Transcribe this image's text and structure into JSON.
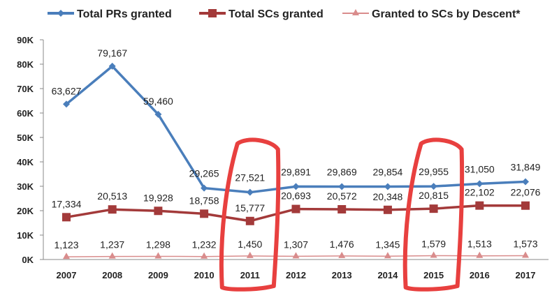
{
  "chart_data": {
    "type": "line",
    "title": "",
    "xlabel": "",
    "ylabel": "",
    "categories": [
      "2007",
      "2008",
      "2009",
      "2010",
      "2011",
      "2012",
      "2013",
      "2014",
      "2015",
      "2016",
      "2017"
    ],
    "ylim": [
      0,
      90000
    ],
    "yticks": [
      "0K",
      "10K",
      "20K",
      "30K",
      "40K",
      "50K",
      "60K",
      "70K",
      "80K",
      "90K"
    ],
    "legend_position": "top",
    "grid": false,
    "series": [
      {
        "name": "Total PRs granted",
        "color": "#4a7ebb",
        "marker": "diamond",
        "values": [
          63627,
          79167,
          59460,
          29265,
          27521,
          29891,
          29869,
          29854,
          29955,
          31050,
          31849
        ]
      },
      {
        "name": "Total SCs granted",
        "color": "#a33a3a",
        "marker": "square",
        "values": [
          17334,
          20513,
          19928,
          18758,
          15777,
          20693,
          20572,
          20348,
          20815,
          22102,
          22076
        ]
      },
      {
        "name": "Granted to SCs by Descent*",
        "color": "#d98c8c",
        "marker": "triangle",
        "values": [
          1123,
          1237,
          1298,
          1232,
          1450,
          1307,
          1476,
          1345,
          1579,
          1513,
          1573
        ]
      }
    ],
    "annotations": {
      "highlighted_categories": [
        "2011",
        "2015"
      ],
      "highlight_color": "#e8403f"
    }
  }
}
